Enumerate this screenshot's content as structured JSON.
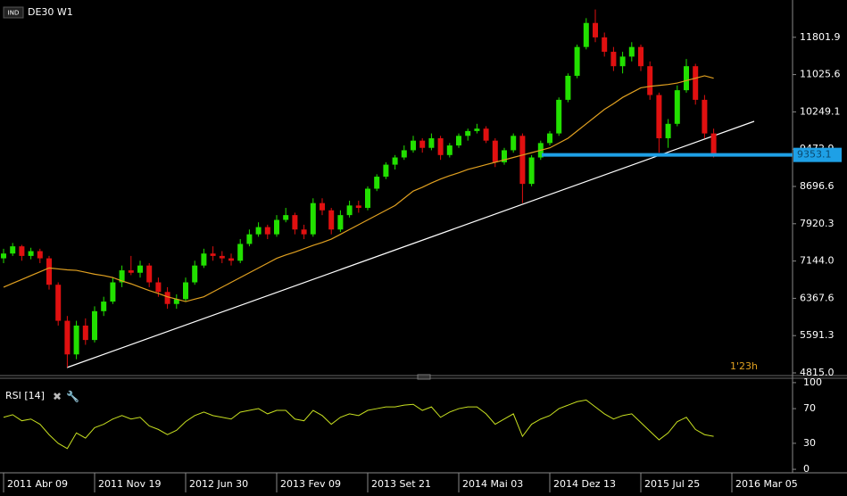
{
  "chart_data": {
    "type": "candlestick",
    "symbol_badge": "IND",
    "title": "DE30 W1",
    "timer": "1'23h",
    "up_color": "#22e000",
    "down_color": "#e01010",
    "ma_color": "#e0a020",
    "ylim": [
      4778,
      12578
    ],
    "yticks": [
      11801.9,
      11025.6,
      10249.1,
      9472.9,
      8696.6,
      7920.3,
      {
        "value": 7144,
        "label": "7144.0"
      },
      6367.6,
      5591.3,
      {
        "value": 4815,
        "label": "4815.0"
      }
    ],
    "x_labels": [
      "2011 Abr 09",
      "2011 Nov 19",
      "2012 Jun 30",
      "2013 Fev 09",
      "2013 Set 21",
      "2014 Mai 03",
      "2014 Dez 13",
      "2015 Jul 25",
      "2016 Mar 05"
    ],
    "candles": [
      [
        7200,
        7400,
        7100,
        7300
      ],
      [
        7300,
        7520,
        7250,
        7450
      ],
      [
        7450,
        7480,
        7150,
        7250
      ],
      [
        7250,
        7420,
        7180,
        7350
      ],
      [
        7350,
        7400,
        7100,
        7200
      ],
      [
        7200,
        7250,
        6550,
        6650
      ],
      [
        6650,
        6700,
        5800,
        5900
      ],
      [
        5900,
        6000,
        4930,
        5200
      ],
      [
        5200,
        5900,
        5100,
        5800
      ],
      [
        5800,
        5950,
        5400,
        5500
      ],
      [
        5500,
        6200,
        5450,
        6100
      ],
      [
        6100,
        6400,
        6000,
        6300
      ],
      [
        6300,
        6800,
        6250,
        6700
      ],
      [
        6700,
        7050,
        6600,
        6950
      ],
      [
        6950,
        7250,
        6850,
        6900
      ],
      [
        6900,
        7150,
        6800,
        7050
      ],
      [
        7050,
        7100,
        6600,
        6700
      ],
      [
        6700,
        6800,
        6400,
        6500
      ],
      [
        6500,
        6600,
        6150,
        6250
      ],
      [
        6250,
        6450,
        6150,
        6350
      ],
      [
        6350,
        6800,
        6300,
        6700
      ],
      [
        6700,
        7150,
        6650,
        7050
      ],
      [
        7050,
        7400,
        7000,
        7300
      ],
      [
        7300,
        7450,
        7150,
        7250
      ],
      [
        7250,
        7350,
        7100,
        7200
      ],
      [
        7200,
        7300,
        7050,
        7150
      ],
      [
        7150,
        7600,
        7100,
        7500
      ],
      [
        7500,
        7800,
        7450,
        7700
      ],
      [
        7700,
        7950,
        7650,
        7850
      ],
      [
        7850,
        7900,
        7600,
        7700
      ],
      [
        7700,
        8100,
        7650,
        8000
      ],
      [
        8000,
        8250,
        7950,
        8100
      ],
      [
        8100,
        8150,
        7700,
        7800
      ],
      [
        7800,
        7900,
        7600,
        7700
      ],
      [
        7700,
        8450,
        7650,
        8350
      ],
      [
        8350,
        8450,
        8100,
        8200
      ],
      [
        8200,
        8250,
        7700,
        7800
      ],
      [
        7800,
        8200,
        7750,
        8100
      ],
      [
        8100,
        8400,
        8050,
        8300
      ],
      [
        8300,
        8400,
        8150,
        8250
      ],
      [
        8250,
        8700,
        8200,
        8650
      ],
      [
        8650,
        8950,
        8600,
        8900
      ],
      [
        8900,
        9200,
        8850,
        9150
      ],
      [
        9150,
        9350,
        9050,
        9300
      ],
      [
        9300,
        9550,
        9250,
        9450
      ],
      [
        9450,
        9750,
        9400,
        9650
      ],
      [
        9650,
        9700,
        9400,
        9500
      ],
      [
        9500,
        9800,
        9450,
        9700
      ],
      [
        9700,
        9750,
        9250,
        9350
      ],
      [
        9350,
        9600,
        9300,
        9550
      ],
      [
        9550,
        9800,
        9500,
        9750
      ],
      [
        9750,
        9900,
        9650,
        9850
      ],
      [
        9850,
        10000,
        9800,
        9900
      ],
      [
        9900,
        9950,
        9600,
        9650
      ],
      [
        9650,
        9700,
        9100,
        9200
      ],
      [
        9200,
        9500,
        9150,
        9450
      ],
      [
        9450,
        9800,
        9400,
        9750
      ],
      [
        9750,
        9800,
        8350,
        8750
      ],
      [
        8750,
        9350,
        8700,
        9300
      ],
      [
        9300,
        9650,
        9250,
        9600
      ],
      [
        9600,
        9850,
        9550,
        9800
      ],
      [
        9800,
        10550,
        9750,
        10500
      ],
      [
        10500,
        11050,
        10450,
        11000
      ],
      [
        11000,
        11650,
        10950,
        11600
      ],
      [
        11600,
        12200,
        11550,
        12100
      ],
      [
        12100,
        12380,
        11700,
        11800
      ],
      [
        11800,
        11900,
        11400,
        11500
      ],
      [
        11500,
        11600,
        11100,
        11200
      ],
      [
        11200,
        11500,
        11050,
        11400
      ],
      [
        11400,
        11700,
        11300,
        11600
      ],
      [
        11600,
        11650,
        11100,
        11200
      ],
      [
        11200,
        11300,
        10500,
        10600
      ],
      [
        10600,
        10650,
        9400,
        9700
      ],
      [
        9700,
        10100,
        9500,
        10000
      ],
      [
        10000,
        10800,
        9950,
        10700
      ],
      [
        10700,
        11350,
        10650,
        11200
      ],
      [
        11200,
        11250,
        10400,
        10500
      ],
      [
        10500,
        10600,
        9700,
        9800
      ],
      [
        9800,
        9900,
        9300,
        9353.1
      ]
    ],
    "ma": [
      6600,
      6680,
      6760,
      6840,
      6920,
      7000,
      6980,
      6960,
      6950,
      6910,
      6870,
      6840,
      6800,
      6730,
      6670,
      6600,
      6530,
      6470,
      6400,
      6350,
      6300,
      6350,
      6400,
      6500,
      6600,
      6700,
      6800,
      6900,
      7000,
      7100,
      7200,
      7270,
      7330,
      7400,
      7470,
      7530,
      7600,
      7700,
      7800,
      7900,
      8000,
      8100,
      8200,
      8300,
      8450,
      8600,
      8680,
      8770,
      8850,
      8920,
      8980,
      9050,
      9100,
      9150,
      9200,
      9250,
      9300,
      9350,
      9400,
      9450,
      9500,
      9600,
      9700,
      9850,
      10000,
      10150,
      10300,
      10420,
      10550,
      10650,
      10750,
      10780,
      10800,
      10820,
      10850,
      10900,
      10950,
      11000,
      10950
    ],
    "rsi": {
      "label": "RSI [14]",
      "color": "#c8e020",
      "ylim": [
        -3,
        103
      ],
      "yticks": [
        100,
        70,
        30,
        0
      ],
      "values": [
        60,
        63,
        56,
        58,
        52,
        40,
        30,
        24,
        42,
        36,
        48,
        52,
        58,
        62,
        58,
        60,
        50,
        46,
        40,
        45,
        55,
        62,
        66,
        62,
        60,
        58,
        66,
        68,
        70,
        64,
        68,
        68,
        58,
        56,
        68,
        62,
        52,
        60,
        64,
        62,
        68,
        70,
        72,
        72,
        74,
        75,
        68,
        72,
        60,
        66,
        70,
        72,
        72,
        64,
        52,
        58,
        64,
        38,
        52,
        58,
        62,
        70,
        74,
        78,
        80,
        72,
        64,
        58,
        62,
        64,
        54,
        44,
        34,
        42,
        55,
        60,
        46,
        40,
        38
      ]
    }
  }
}
